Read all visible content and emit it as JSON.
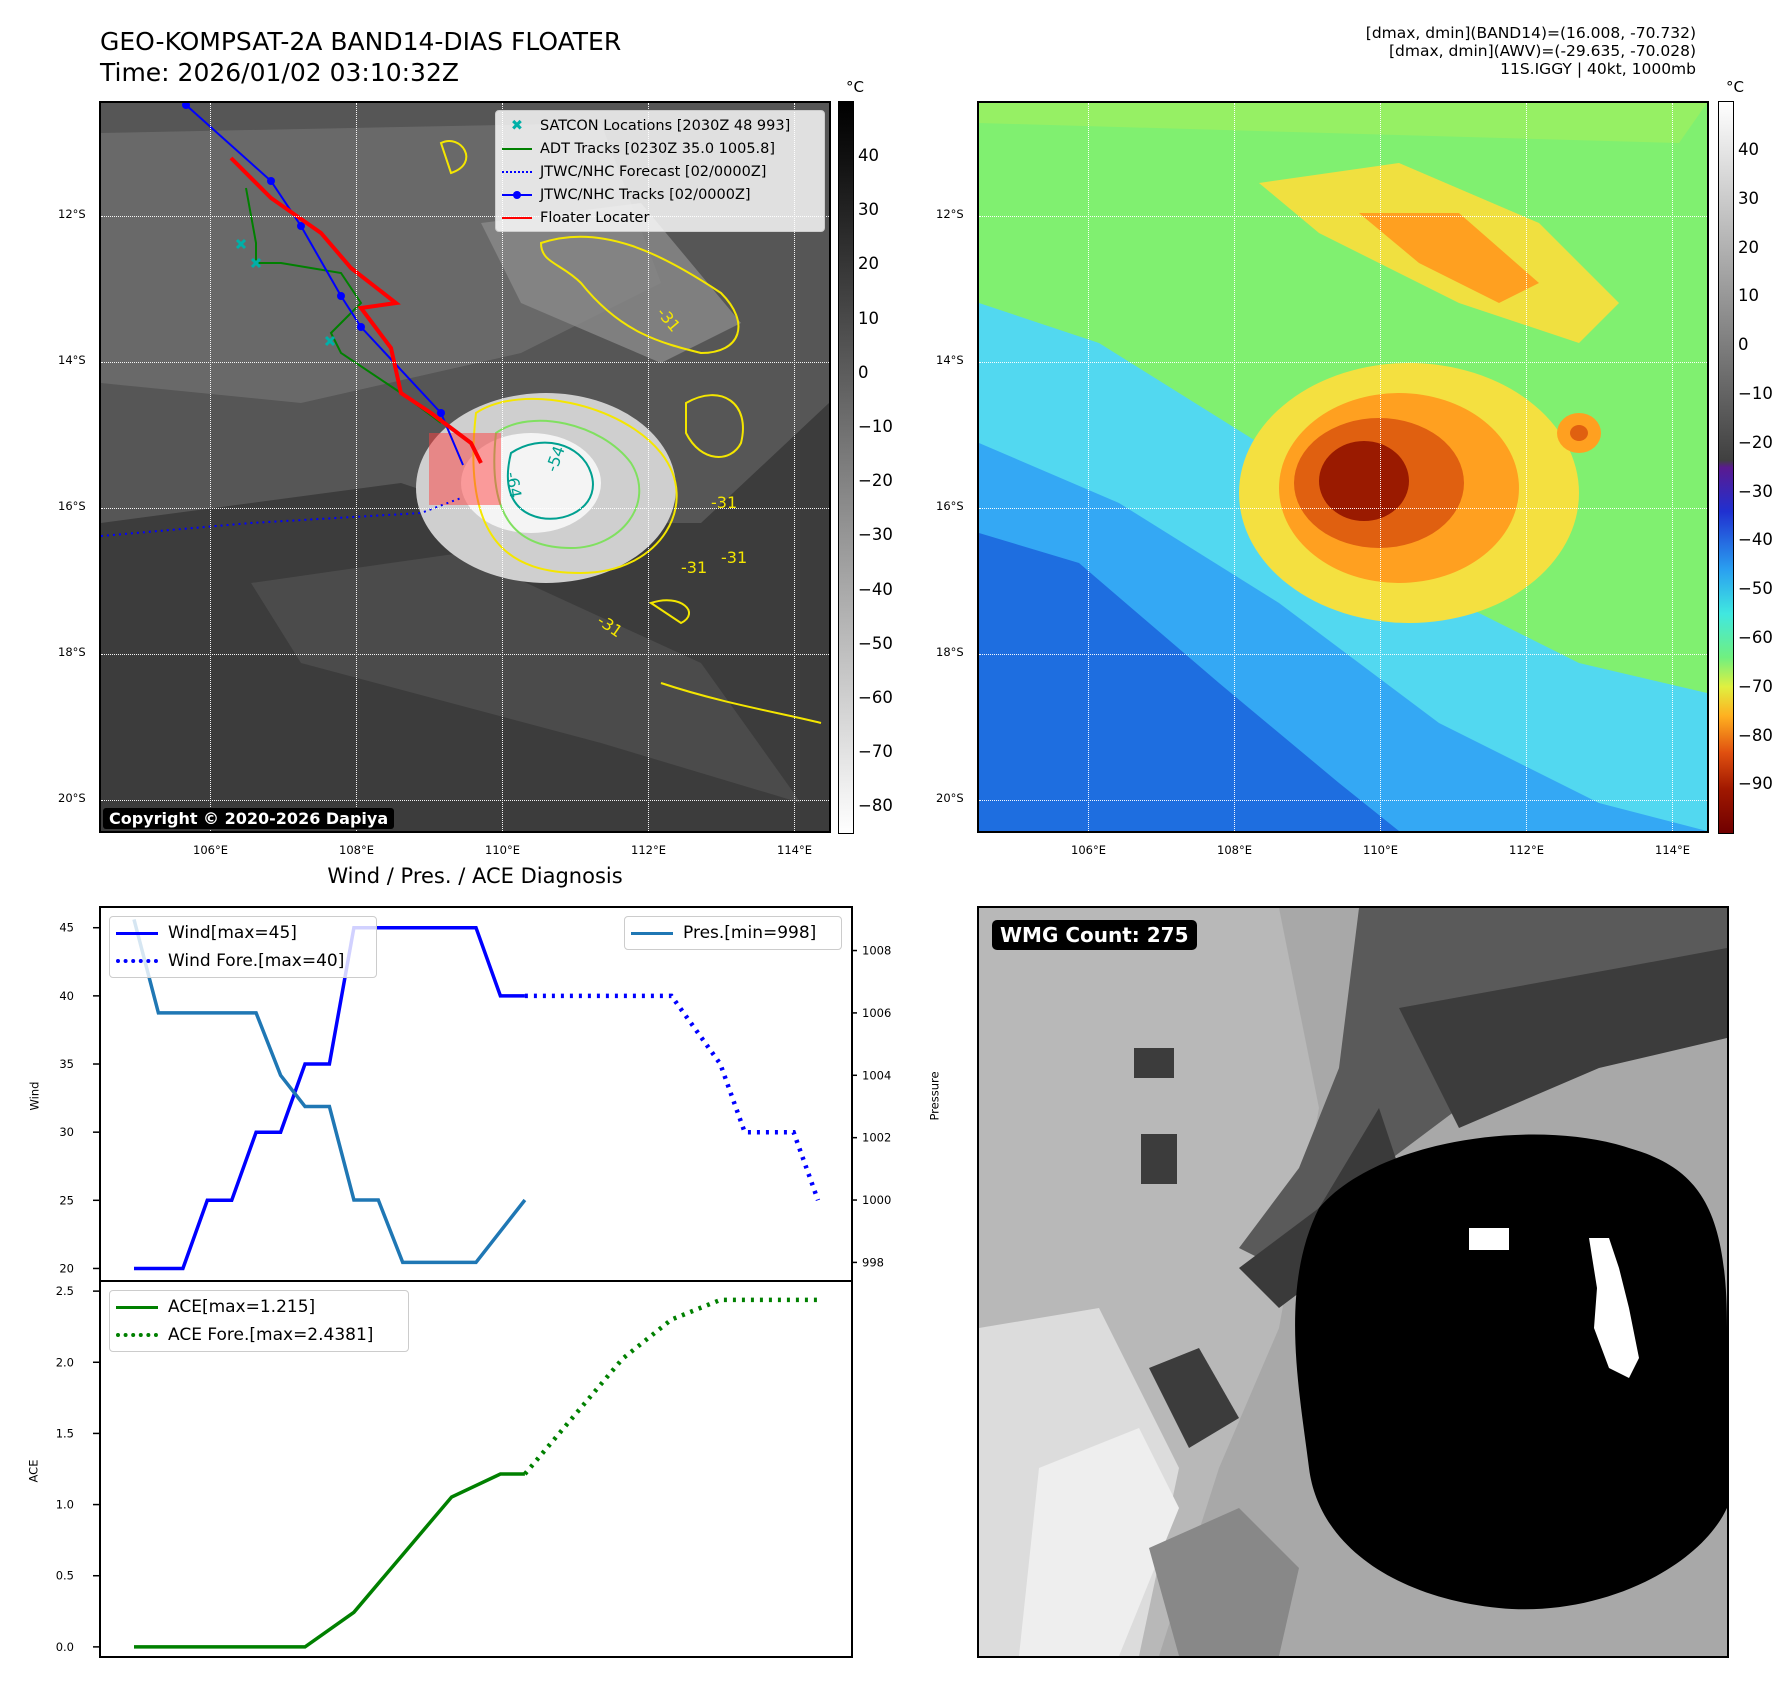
{
  "header": {
    "title_line1": "GEO-KOMPSAT-2A BAND14-DIAS FLOATER",
    "title_line2": "Time: 2026/01/02 03:10:32Z",
    "info_line1": "[dmax, dmin](BAND14)=(16.008, -70.732)",
    "info_line2": "[dmax, dmin](AWV)=(-29.635, -70.028)",
    "info_line3": "11S.IGGY | 40kt, 1000mb"
  },
  "map_axes": {
    "lat_labels": [
      "12°S",
      "14°S",
      "16°S",
      "18°S",
      "20°S"
    ],
    "lon_labels": [
      "106°E",
      "108°E",
      "110°E",
      "112°E",
      "114°E"
    ]
  },
  "ir_panel": {
    "copyright": "Copyright © 2020-2026 Dapiya",
    "colorbar_unit": "°C",
    "colorbar_ticks": [
      "40",
      "30",
      "20",
      "10",
      "0",
      "−10",
      "−20",
      "−30",
      "−40",
      "−50",
      "−60",
      "−70",
      "−80"
    ],
    "contour_labels": [
      "-31",
      "-31",
      "-31",
      "-31",
      "-31",
      "-54",
      "-64"
    ],
    "legend": [
      {
        "label": "SATCON Locations [2030Z 48 993]",
        "color": "#00b0a8",
        "style": "x"
      },
      {
        "label": "ADT Tracks [0230Z 35.0 1005.8]",
        "color": "#008000",
        "style": "solid"
      },
      {
        "label": "JTWC/NHC Forecast [02/0000Z]",
        "color": "#0000ff",
        "style": "dotted"
      },
      {
        "label": "JTWC/NHC Tracks [02/0000Z]",
        "color": "#0000ff",
        "style": "marker"
      },
      {
        "label": "Floater Locater",
        "color": "#ff0000",
        "style": "solid"
      }
    ]
  },
  "awv_panel": {
    "colorbar_unit": "°C",
    "colorbar_ticks": [
      "40",
      "30",
      "20",
      "10",
      "0",
      "−10",
      "−20",
      "−30",
      "−40",
      "−50",
      "−60",
      "−70",
      "−80",
      "−90"
    ]
  },
  "diag": {
    "title": "Wind / Pres. / ACE Diagnosis",
    "wind_ylabel": "Wind",
    "pressure_ylabel": "Pressure",
    "ace_ylabel": "ACE",
    "wind_ticks": [
      "45",
      "40",
      "35",
      "30",
      "25",
      "20"
    ],
    "pres_ticks": [
      "1008",
      "1006",
      "1004",
      "1002",
      "1000",
      "998"
    ],
    "ace_ticks": [
      "2.5",
      "2.0",
      "1.5",
      "1.0",
      "0.5",
      "0.0"
    ],
    "legend_wind": "Wind[max=45]",
    "legend_wind_fore": "Wind Fore.[max=40]",
    "legend_pres": "Pres.[min=998]",
    "legend_ace": "ACE[max=1.215]",
    "legend_ace_fore": "ACE Fore.[max=2.4381]",
    "colors": {
      "wind": "#0000ff",
      "pres": "#1f77b4",
      "ace": "#008000"
    }
  },
  "wmg": {
    "label": "WMG Count: 275"
  },
  "chart_data": [
    {
      "type": "line",
      "title": "Wind / Pres. / ACE Diagnosis",
      "xlabel": "",
      "ylabel": "Wind",
      "ylim": [
        19.3,
        46.3
      ],
      "series": [
        {
          "name": "Wind[max=45]",
          "x": [
            0,
            1,
            1.5,
            2,
            2.5,
            3,
            3.5,
            4,
            4.5,
            5,
            6,
            6.5,
            7,
            7.5,
            8
          ],
          "values": [
            20,
            20,
            25,
            25,
            30,
            30,
            35,
            35,
            45,
            45,
            45,
            45,
            45,
            40,
            40
          ]
        },
        {
          "name": "Wind Fore.[max=40]",
          "x": [
            8,
            10,
            11,
            11.5,
            12,
            12.5,
            13,
            13.5,
            14
          ],
          "values": [
            40,
            40,
            40,
            37.5,
            35,
            30,
            30,
            30,
            25
          ]
        }
      ]
    },
    {
      "type": "line",
      "ylabel": "Pressure",
      "ylim": [
        997.5,
        1009.3
      ],
      "series": [
        {
          "name": "Pres.[min=998]",
          "x": [
            0,
            0.5,
            1,
            1.5,
            2,
            2.5,
            3,
            3.5,
            4,
            4.5,
            5,
            5.5,
            6,
            7,
            8
          ],
          "values": [
            1009,
            1006,
            1006,
            1006,
            1006,
            1006,
            1004,
            1003,
            1003,
            1000,
            1000,
            998,
            998,
            998,
            1000
          ]
        }
      ]
    },
    {
      "type": "line",
      "ylabel": "ACE",
      "ylim": [
        -0.05,
        2.55
      ],
      "series": [
        {
          "name": "ACE[max=1.215]",
          "x": [
            0,
            3.5,
            4.5,
            5.5,
            6.5,
            7.5,
            8
          ],
          "values": [
            0,
            0,
            0.243,
            0.648,
            1.053,
            1.215,
            1.215
          ]
        },
        {
          "name": "ACE Fore.[max=2.4381]",
          "x": [
            8,
            9,
            10,
            11,
            12,
            13,
            14
          ],
          "values": [
            1.215,
            1.62,
            2.025,
            2.3,
            2.438,
            2.438,
            2.438
          ]
        }
      ]
    }
  ]
}
